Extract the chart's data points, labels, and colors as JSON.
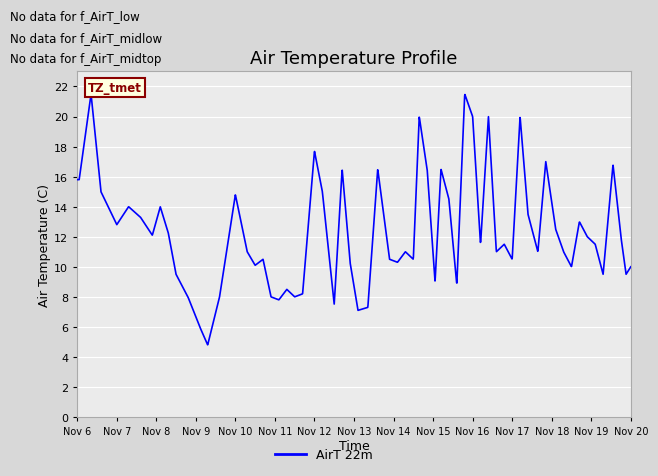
{
  "title": "Air Temperature Profile",
  "xlabel": "Time",
  "ylabel": "Air Temperature (C)",
  "line_color": "#0000FF",
  "line_width": 1.2,
  "ylim": [
    0,
    23
  ],
  "yticks": [
    0,
    2,
    4,
    6,
    8,
    10,
    12,
    14,
    16,
    18,
    20,
    22
  ],
  "xtick_labels": [
    "Nov 6",
    "Nov 7",
    "Nov 8",
    "Nov 9",
    "Nov 10",
    "Nov 11",
    "Nov 12",
    "Nov 13",
    "Nov 14",
    "Nov 15",
    "Nov 16",
    "Nov 17",
    "Nov 18",
    "Nov 19",
    "Nov 20"
  ],
  "legend_label": "AirT 22m",
  "annotation_text": "TZ_tmet",
  "no_data_texts": [
    "No data for f_AirT_low",
    "No data for f_AirT_midlow",
    "No data for f_AirT_midtop"
  ],
  "bg_color": "#d8d8d8",
  "plot_bg_color": "#ebebeb",
  "grid_color": "#ffffff",
  "title_fontsize": 13,
  "axis_fontsize": 9,
  "tick_fontsize": 8
}
